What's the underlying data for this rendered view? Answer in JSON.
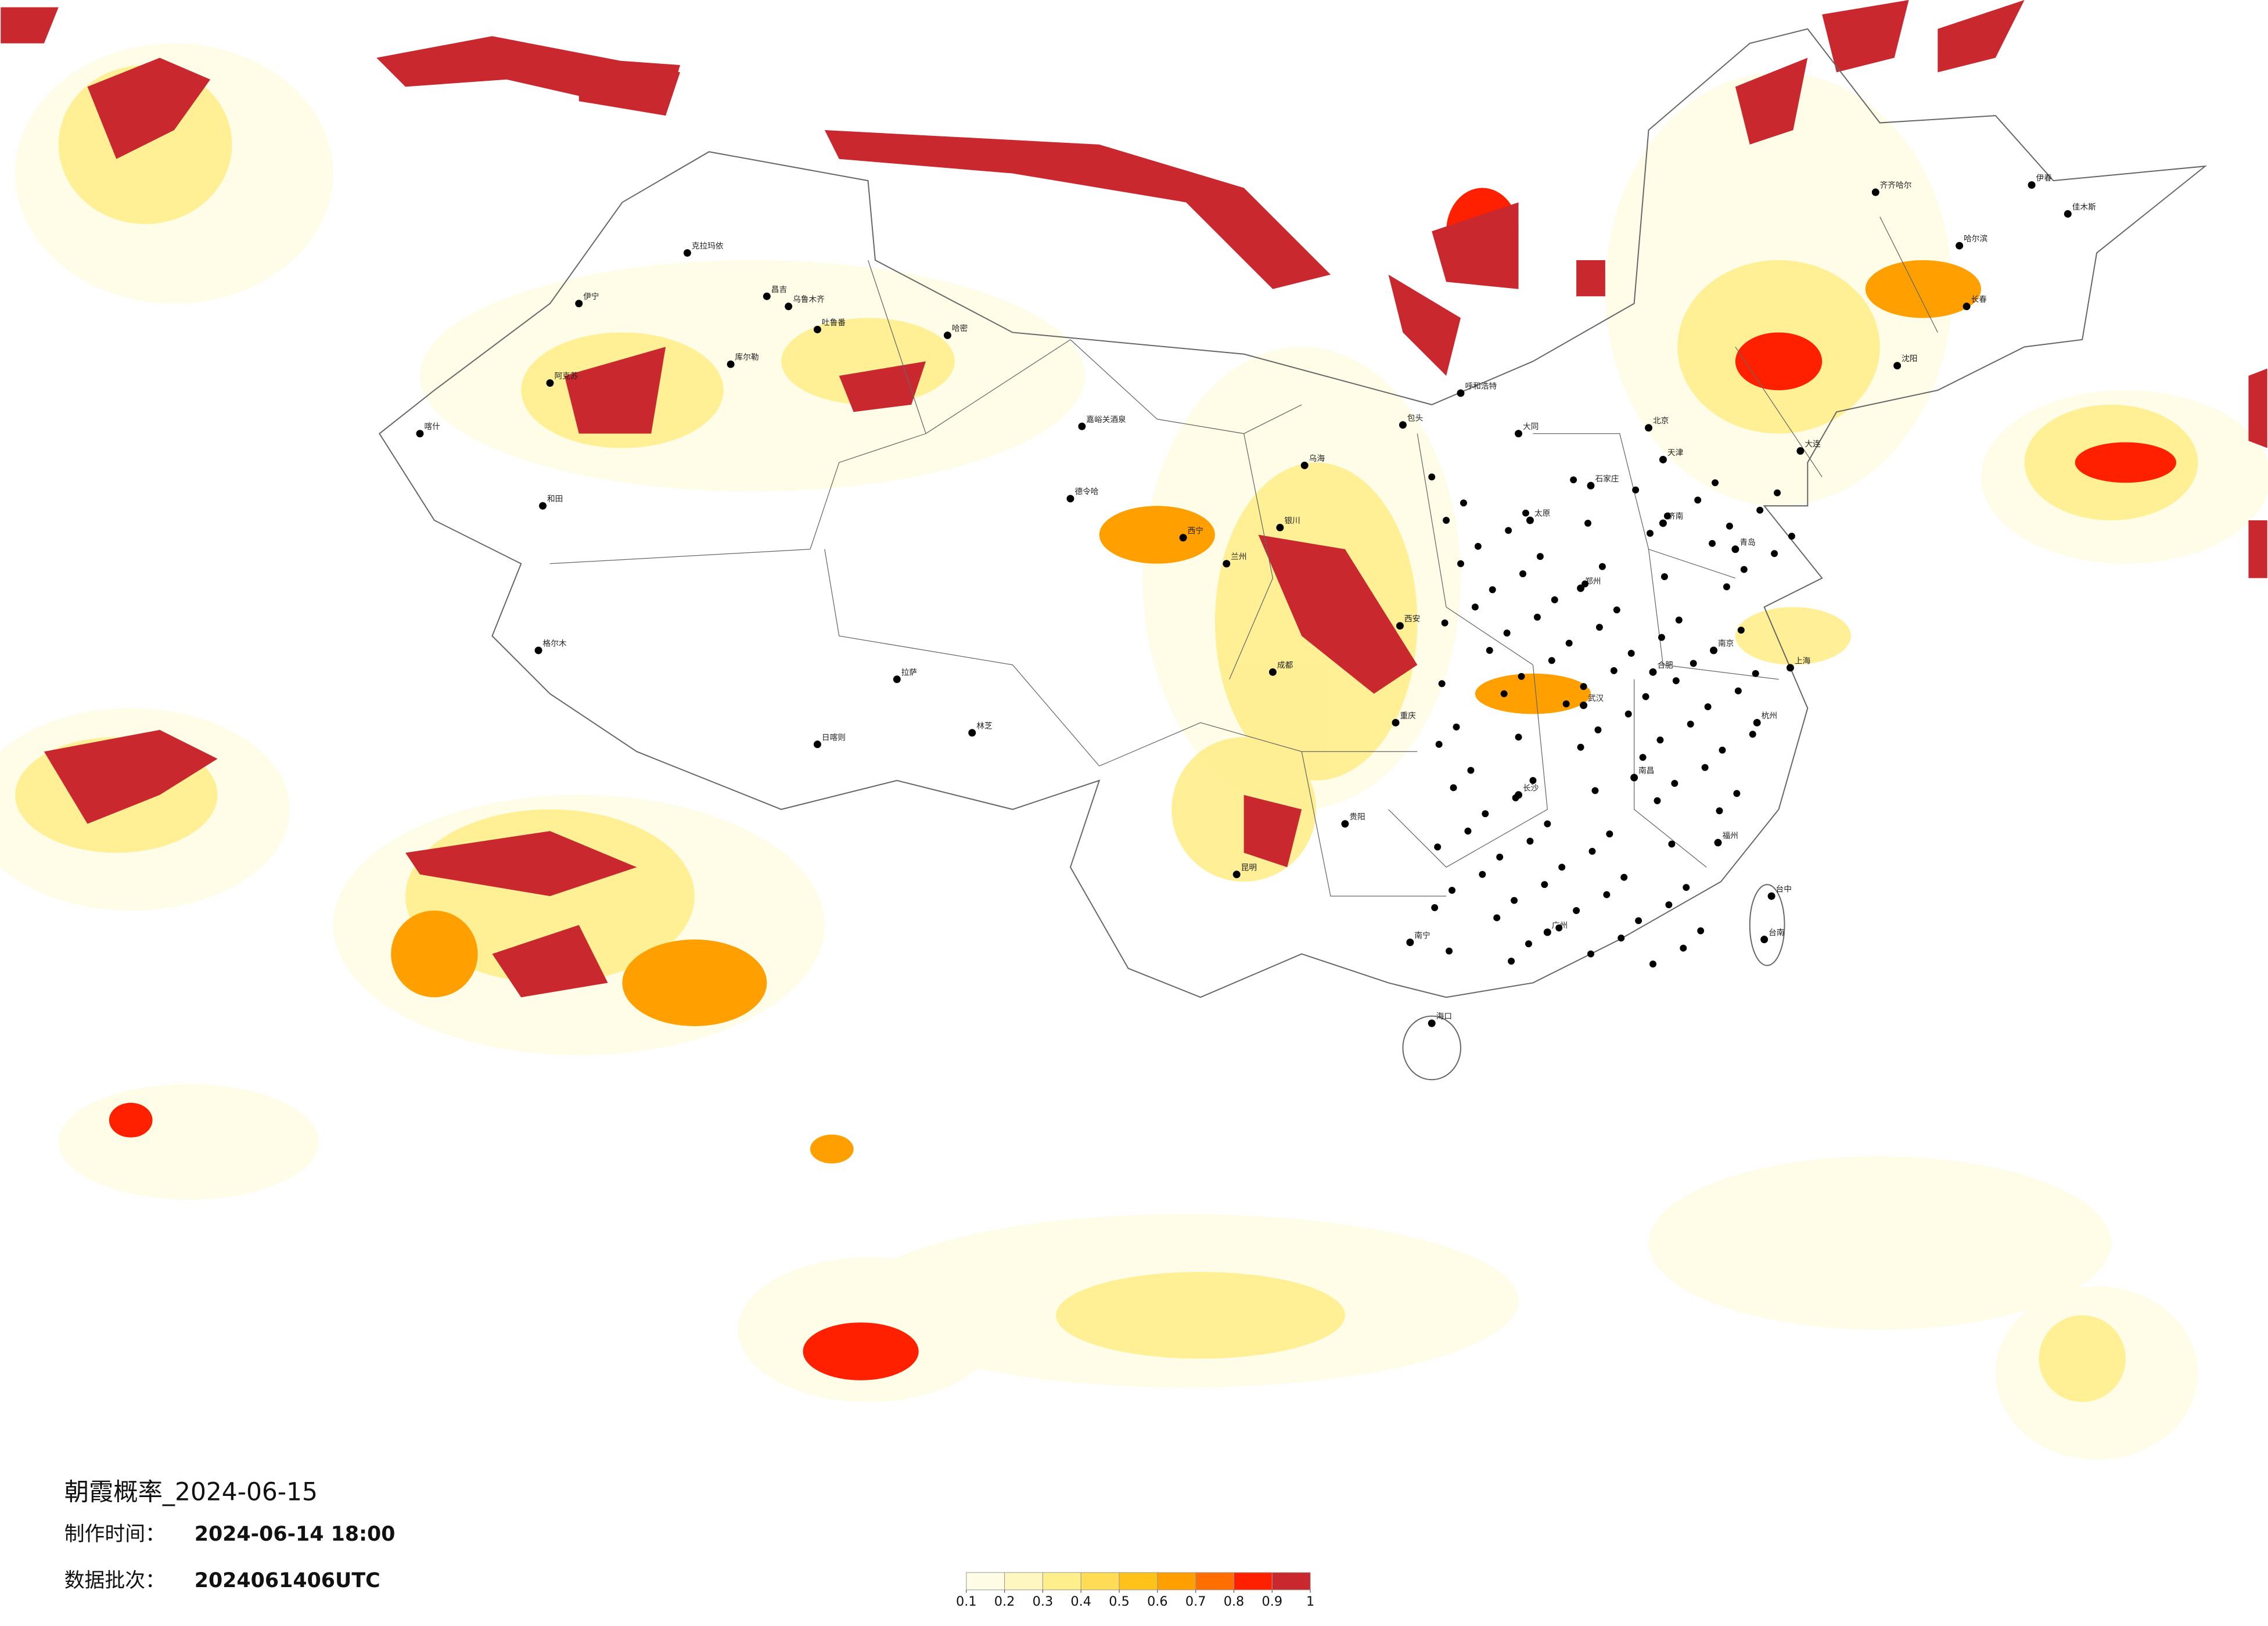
{
  "header": {
    "title": "朝霞概率_2024-06-15",
    "made_label": "制作时间：",
    "made_value": "2024-06-14 18:00",
    "batch_label": "数据批次：",
    "batch_value": "2024061406UTC"
  },
  "colorbar": {
    "ticks": [
      0.1,
      0.2,
      0.3,
      0.4,
      0.5,
      0.6,
      0.7,
      0.8,
      0.9,
      1
    ],
    "colors": [
      "#fffce6",
      "#fff7bf",
      "#ffee8c",
      "#ffdc55",
      "#ffc21a",
      "#ffa000",
      "#ff6e00",
      "#ff2000",
      "#c8282e"
    ]
  },
  "cities": [
    "克拉玛依",
    "伊宁",
    "昌吉",
    "乌鲁木齐",
    "吐鲁番",
    "哈密",
    "库尔勒",
    "阿克苏",
    "喀什",
    "和田",
    "格尔木",
    "嘉峪关酒泉",
    "德令哈",
    "西宁",
    "兰州",
    "银川",
    "乌海",
    "呼和浩特",
    "包头",
    "大同",
    "北京",
    "天津",
    "石家庄",
    "太原",
    "济南",
    "郑州",
    "西安",
    "成都",
    "重庆",
    "贵阳",
    "昆明",
    "南宁",
    "长沙",
    "武汉",
    "合肥",
    "南京",
    "上海",
    "杭州",
    "福州",
    "南昌",
    "广州",
    "海口",
    "拉萨",
    "林芝",
    "日喀则",
    "齐齐哈尔",
    "哈尔滨",
    "长春",
    "沈阳",
    "大连",
    "青岛",
    "台中",
    "台南",
    "伊春",
    "佳木斯"
  ]
}
